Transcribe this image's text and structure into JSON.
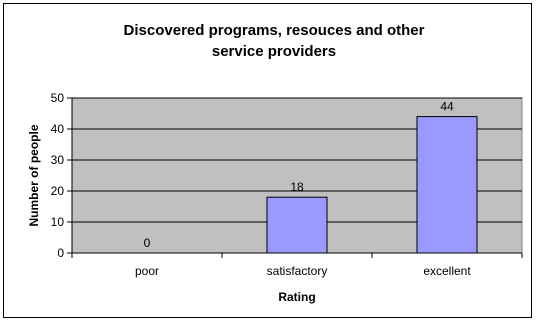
{
  "chart_data": {
    "type": "bar",
    "title_lines": [
      "Discovered programs, resouces and other",
      "service providers"
    ],
    "xlabel": "Rating",
    "ylabel": "Number of people",
    "categories": [
      "poor",
      "satisfactory",
      "excellent"
    ],
    "values": [
      0,
      18,
      44
    ],
    "data_labels": [
      "0",
      "18",
      "44"
    ],
    "ylim": [
      0,
      50
    ],
    "yticks": [
      0,
      10,
      20,
      30,
      40,
      50
    ],
    "grid": true,
    "legend": "none",
    "colors": {
      "plot_background": "#c0c0c0",
      "bar_fill": "#9999ff",
      "bar_stroke": "#000000",
      "grid": "#000000"
    }
  }
}
